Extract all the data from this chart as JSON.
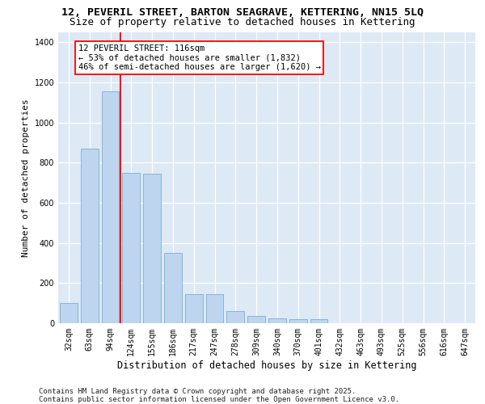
{
  "title": "12, PEVERIL STREET, BARTON SEAGRAVE, KETTERING, NN15 5LQ",
  "subtitle": "Size of property relative to detached houses in Kettering",
  "xlabel": "Distribution of detached houses by size in Kettering",
  "ylabel": "Number of detached properties",
  "categories": [
    "32sqm",
    "63sqm",
    "94sqm",
    "124sqm",
    "155sqm",
    "186sqm",
    "217sqm",
    "247sqm",
    "278sqm",
    "309sqm",
    "340sqm",
    "370sqm",
    "401sqm",
    "432sqm",
    "463sqm",
    "493sqm",
    "525sqm",
    "556sqm",
    "616sqm",
    "647sqm"
  ],
  "values": [
    100,
    870,
    1155,
    750,
    745,
    350,
    145,
    145,
    60,
    35,
    25,
    20,
    20,
    0,
    0,
    0,
    0,
    0,
    0,
    0
  ],
  "bar_color": "#bdd5ee",
  "bar_edge_color": "#7bafd4",
  "vline_color": "red",
  "vline_x_index": 2.5,
  "annotation_text": "12 PEVERIL STREET: 116sqm\n← 53% of detached houses are smaller (1,832)\n46% of semi-detached houses are larger (1,620) →",
  "annotation_box_color": "white",
  "annotation_box_edge_color": "red",
  "ylim": [
    0,
    1450
  ],
  "yticks": [
    0,
    200,
    400,
    600,
    800,
    1000,
    1200,
    1400
  ],
  "bg_color": "#dde9f5",
  "grid_color": "white",
  "footer": "Contains HM Land Registry data © Crown copyright and database right 2025.\nContains public sector information licensed under the Open Government Licence v3.0.",
  "title_fontsize": 9.5,
  "subtitle_fontsize": 9,
  "xlabel_fontsize": 8.5,
  "ylabel_fontsize": 8,
  "tick_fontsize": 7,
  "footer_fontsize": 6.5,
  "annot_fontsize": 7.5
}
